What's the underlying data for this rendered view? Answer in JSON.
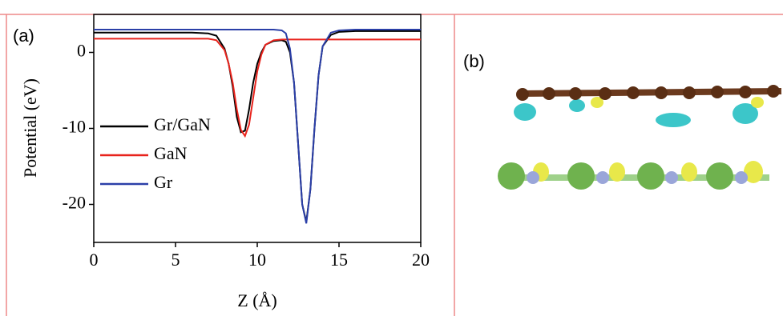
{
  "chart_data": {
    "type": "line",
    "panel_label": "(a)",
    "image_label": "(b)",
    "x_label": "Z (Å)",
    "y_label": "Potential (eV)",
    "x": [
      0,
      1,
      2,
      3,
      4,
      5,
      6,
      7,
      7.5,
      8,
      8.25,
      8.5,
      8.75,
      9,
      9.25,
      9.5,
      9.75,
      10,
      10.25,
      10.5,
      11,
      11.5,
      11.75,
      12,
      12.25,
      12.5,
      12.75,
      13,
      13.25,
      13.5,
      13.75,
      14,
      14.5,
      15,
      16,
      17,
      18,
      19,
      20
    ],
    "series": [
      {
        "name": "Gr/GaN",
        "color": "#000000",
        "values": [
          2.6,
          2.6,
          2.6,
          2.6,
          2.6,
          2.6,
          2.6,
          2.5,
          2.2,
          0.5,
          -1.5,
          -4.5,
          -8.5,
          -10.5,
          -10.3,
          -7.5,
          -4,
          -1.5,
          0,
          1,
          1.5,
          1.6,
          1.4,
          0,
          -4,
          -12,
          -20,
          -22.3,
          -18,
          -10,
          -3,
          0.8,
          2.3,
          2.7,
          2.8,
          2.8,
          2.8,
          2.8,
          2.8
        ]
      },
      {
        "name": "GaN",
        "color": "#e8231c",
        "values": [
          1.8,
          1.8,
          1.8,
          1.8,
          1.8,
          1.8,
          1.8,
          1.8,
          1.6,
          0.3,
          -1.5,
          -4,
          -7.5,
          -10.2,
          -11,
          -9.5,
          -6,
          -2.5,
          -0.3,
          1,
          1.6,
          1.7,
          1.7,
          1.7,
          1.7,
          1.7,
          1.7,
          1.7,
          1.7,
          1.7,
          1.7,
          1.7,
          1.7,
          1.7,
          1.7,
          1.7,
          1.7,
          1.7,
          1.7
        ]
      },
      {
        "name": "Gr",
        "color": "#2b3fa8",
        "values": [
          3,
          3,
          3,
          3,
          3,
          3,
          3,
          3,
          3,
          3,
          3,
          3,
          3,
          3,
          3,
          3,
          3,
          3,
          3,
          3,
          3,
          2.9,
          2.5,
          0.5,
          -4,
          -12,
          -20,
          -22.5,
          -18,
          -10,
          -3,
          0.8,
          2.6,
          2.9,
          3,
          3,
          3,
          3,
          3
        ]
      }
    ],
    "xlim": [
      0,
      20
    ],
    "ylim": [
      -25,
      5
    ],
    "xticks": [
      0,
      5,
      10,
      15,
      20
    ],
    "yticks": [
      -20,
      -10,
      0
    ]
  }
}
